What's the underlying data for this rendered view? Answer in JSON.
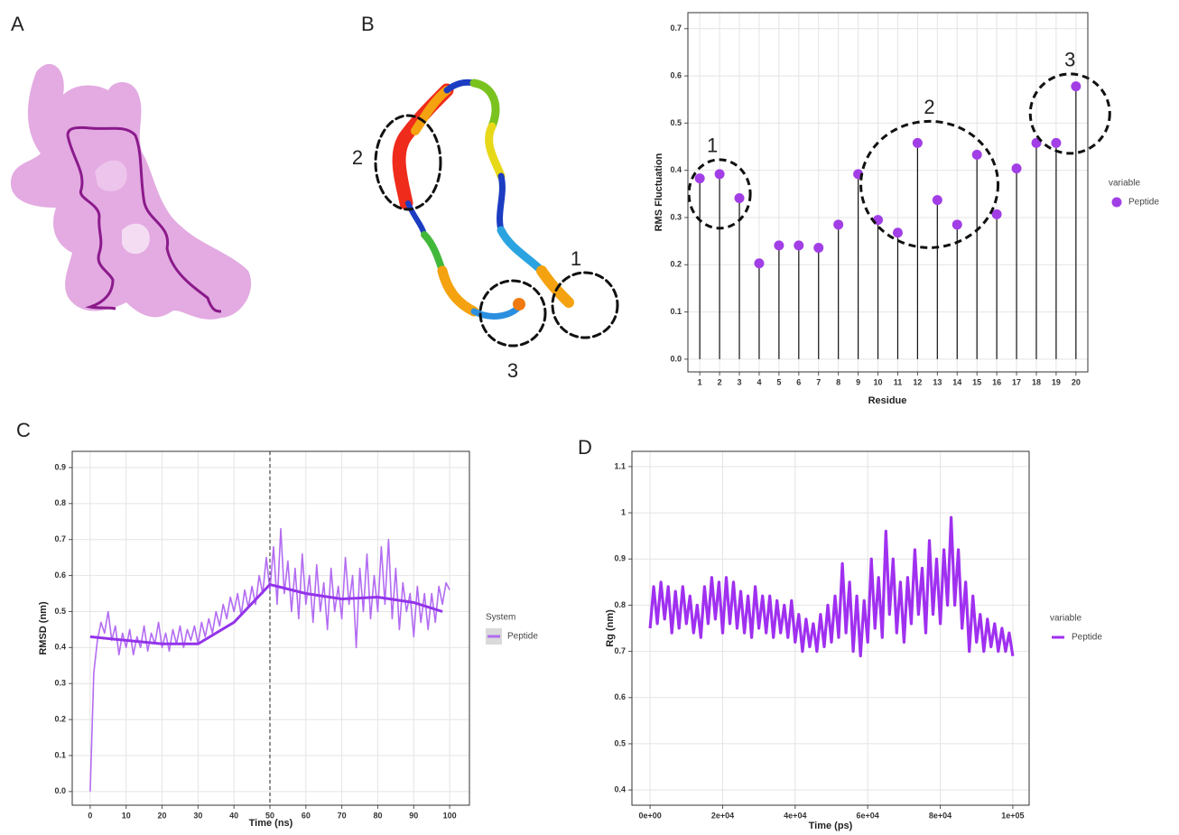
{
  "panel_labels": [
    "A",
    "B",
    "C",
    "D"
  ],
  "structure_annotations": [
    "1",
    "2",
    "3"
  ],
  "chart_data": [
    {
      "type": "lollipop",
      "x_label": "Residue",
      "y_label": "RMS Fluctuation",
      "categories": [
        "1",
        "2",
        "3",
        "4",
        "5",
        "6",
        "7",
        "8",
        "9",
        "10",
        "11",
        "12",
        "13",
        "14",
        "15",
        "16",
        "17",
        "18",
        "19",
        "20"
      ],
      "series": [
        {
          "name": "Peptide",
          "color": "#a23ee6",
          "values": [
            0.383,
            0.392,
            0.341,
            0.203,
            0.241,
            0.241,
            0.236,
            0.285,
            0.392,
            0.295,
            0.268,
            0.458,
            0.337,
            0.285,
            0.433,
            0.307,
            0.404,
            0.458,
            0.458,
            0.578
          ]
        }
      ],
      "legend_title": "variable",
      "annotations": [
        "1",
        "2",
        "3"
      ],
      "ylim": [
        -0.027,
        0.734
      ],
      "yticks": [
        {
          "value": 0,
          "label": "0.0"
        },
        0.1,
        0.2,
        0.3,
        0.4,
        0.5,
        0.6,
        0.7
      ],
      "grid": true
    },
    {
      "type": "line",
      "x_label": "Time (ns)",
      "y_label": "RMSD (nm)",
      "series": [
        {
          "name": "Peptide",
          "color": "#b36cf2",
          "x": [
            0,
            1,
            2,
            3,
            4,
            5,
            6,
            7,
            8,
            9,
            10,
            11,
            12,
            13,
            14,
            15,
            16,
            17,
            18,
            19,
            20,
            21,
            22,
            23,
            24,
            25,
            26,
            27,
            28,
            29,
            30,
            31,
            32,
            33,
            34,
            35,
            36,
            37,
            38,
            39,
            40,
            41,
            42,
            43,
            44,
            45,
            46,
            47,
            48,
            49,
            50,
            51,
            52,
            53,
            54,
            55,
            56,
            57,
            58,
            59,
            60,
            61,
            62,
            63,
            64,
            65,
            66,
            67,
            68,
            69,
            70,
            71,
            72,
            73,
            74,
            75,
            76,
            77,
            78,
            79,
            80,
            81,
            82,
            83,
            84,
            85,
            86,
            87,
            88,
            89,
            90,
            91,
            92,
            93,
            94,
            95,
            96,
            97,
            98,
            99,
            100
          ],
          "values": [
            0.0,
            0.33,
            0.42,
            0.47,
            0.44,
            0.5,
            0.42,
            0.46,
            0.38,
            0.44,
            0.4,
            0.45,
            0.38,
            0.43,
            0.4,
            0.46,
            0.39,
            0.44,
            0.41,
            0.47,
            0.4,
            0.44,
            0.39,
            0.45,
            0.41,
            0.46,
            0.4,
            0.45,
            0.42,
            0.46,
            0.41,
            0.47,
            0.43,
            0.48,
            0.44,
            0.5,
            0.46,
            0.52,
            0.48,
            0.54,
            0.5,
            0.55,
            0.49,
            0.56,
            0.51,
            0.57,
            0.52,
            0.6,
            0.55,
            0.65,
            0.56,
            0.68,
            0.52,
            0.73,
            0.55,
            0.64,
            0.5,
            0.62,
            0.48,
            0.66,
            0.52,
            0.6,
            0.47,
            0.63,
            0.5,
            0.58,
            0.45,
            0.62,
            0.5,
            0.57,
            0.48,
            0.65,
            0.52,
            0.6,
            0.4,
            0.62,
            0.5,
            0.66,
            0.48,
            0.6,
            0.5,
            0.68,
            0.52,
            0.7,
            0.48,
            0.62,
            0.45,
            0.58,
            0.5,
            0.55,
            0.43,
            0.57,
            0.47,
            0.55,
            0.45,
            0.55,
            0.47,
            0.57,
            0.52,
            0.58,
            0.56
          ]
        }
      ],
      "smooth": {
        "color": "#9333ea",
        "x": [
          0,
          10,
          20,
          30,
          40,
          50,
          60,
          70,
          80,
          90,
          98
        ],
        "values": [
          0.43,
          0.42,
          0.41,
          0.41,
          0.47,
          0.575,
          0.55,
          0.535,
          0.54,
          0.525,
          0.5
        ]
      },
      "vline": 50,
      "legend_title": "System",
      "xlim": [
        -5,
        105.5
      ],
      "xticks": [
        0,
        10,
        20,
        30,
        40,
        50,
        60,
        70,
        80,
        90,
        100
      ],
      "ylim": [
        -0.038,
        0.945
      ],
      "yticks": [
        {
          "value": 0,
          "label": "0.0"
        },
        0.1,
        0.2,
        0.3,
        0.4,
        0.5,
        0.6,
        0.7,
        0.8,
        0.9
      ],
      "grid": true
    },
    {
      "type": "line",
      "x_label": "Time (ps)",
      "y_label": "Rg (nm)",
      "series": [
        {
          "name": "Peptide",
          "color": "#a030f0",
          "x": [
            0,
            1000,
            2000,
            3000,
            4000,
            5000,
            6000,
            7000,
            8000,
            9000,
            10000,
            11000,
            12000,
            13000,
            14000,
            15000,
            16000,
            17000,
            18000,
            19000,
            20000,
            21000,
            22000,
            23000,
            24000,
            25000,
            26000,
            27000,
            28000,
            29000,
            30000,
            31000,
            32000,
            33000,
            34000,
            35000,
            36000,
            37000,
            38000,
            39000,
            40000,
            41000,
            42000,
            43000,
            44000,
            45000,
            46000,
            47000,
            48000,
            49000,
            50000,
            51000,
            52000,
            53000,
            54000,
            55000,
            56000,
            57000,
            58000,
            59000,
            60000,
            61000,
            62000,
            63000,
            64000,
            65000,
            66000,
            67000,
            68000,
            69000,
            70000,
            71000,
            72000,
            73000,
            74000,
            75000,
            76000,
            77000,
            78000,
            79000,
            80000,
            81000,
            82000,
            83000,
            84000,
            85000,
            86000,
            87000,
            88000,
            89000,
            90000,
            91000,
            92000,
            93000,
            94000,
            95000,
            96000,
            97000,
            98000,
            99000,
            100000
          ],
          "values": [
            0.75,
            0.84,
            0.76,
            0.85,
            0.77,
            0.84,
            0.74,
            0.83,
            0.75,
            0.84,
            0.76,
            0.82,
            0.74,
            0.8,
            0.73,
            0.84,
            0.76,
            0.86,
            0.77,
            0.85,
            0.74,
            0.86,
            0.76,
            0.85,
            0.75,
            0.83,
            0.74,
            0.82,
            0.73,
            0.84,
            0.75,
            0.82,
            0.74,
            0.82,
            0.73,
            0.81,
            0.74,
            0.8,
            0.73,
            0.81,
            0.72,
            0.78,
            0.7,
            0.77,
            0.71,
            0.76,
            0.7,
            0.78,
            0.71,
            0.8,
            0.72,
            0.82,
            0.73,
            0.89,
            0.74,
            0.85,
            0.7,
            0.82,
            0.69,
            0.81,
            0.72,
            0.9,
            0.75,
            0.86,
            0.73,
            0.96,
            0.78,
            0.9,
            0.74,
            0.85,
            0.72,
            0.86,
            0.76,
            0.92,
            0.78,
            0.88,
            0.74,
            0.94,
            0.78,
            0.9,
            0.76,
            0.92,
            0.8,
            0.99,
            0.8,
            0.92,
            0.75,
            0.85,
            0.7,
            0.82,
            0.72,
            0.78,
            0.7,
            0.77,
            0.71,
            0.76,
            0.7,
            0.75,
            0.7,
            0.74,
            0.69
          ]
        }
      ],
      "legend_title": "variable",
      "xlim": [
        -5000,
        104500
      ],
      "xticks": [
        {
          "value": 0,
          "label": "0e+00"
        },
        {
          "value": 20000,
          "label": "2e+04"
        },
        {
          "value": 40000,
          "label": "4e+04"
        },
        {
          "value": 60000,
          "label": "6e+04"
        },
        {
          "value": 80000,
          "label": "8e+04"
        },
        {
          "value": 100000,
          "label": "1e+05"
        }
      ],
      "ylim": [
        0.367,
        1.133
      ],
      "yticks": [
        0.4,
        0.5,
        0.6,
        0.7,
        0.8,
        0.9,
        1.0,
        1.1
      ],
      "grid": true
    }
  ]
}
